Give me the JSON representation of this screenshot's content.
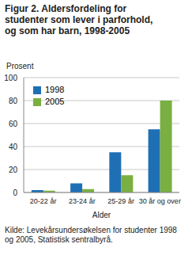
{
  "chart_data": {
    "type": "bar",
    "title": "Figur 2. Aldersfordeling for studenter som lever i parforhold, og som har barn, 1998-2005",
    "y_label": "Prosent",
    "x_label": "Alder",
    "source": "Kilde: Levekårsundersøkelsen for studenter 1998 og 2005, Statistisk sentralbyrå.",
    "categories": [
      "20-22 år",
      "23-24 år",
      "25-29 år",
      "30 år og over"
    ],
    "series": [
      {
        "name": "1998",
        "color": "#1f6fb5",
        "values": [
          2,
          8,
          35,
          55
        ]
      },
      {
        "name": "2005",
        "color": "#79b041",
        "values": [
          1.5,
          3,
          15,
          80
        ]
      }
    ],
    "ylim": [
      0,
      100
    ],
    "yticks": [
      0,
      20,
      40,
      60,
      80,
      100
    ],
    "grid": true,
    "legend": "top-left"
  }
}
